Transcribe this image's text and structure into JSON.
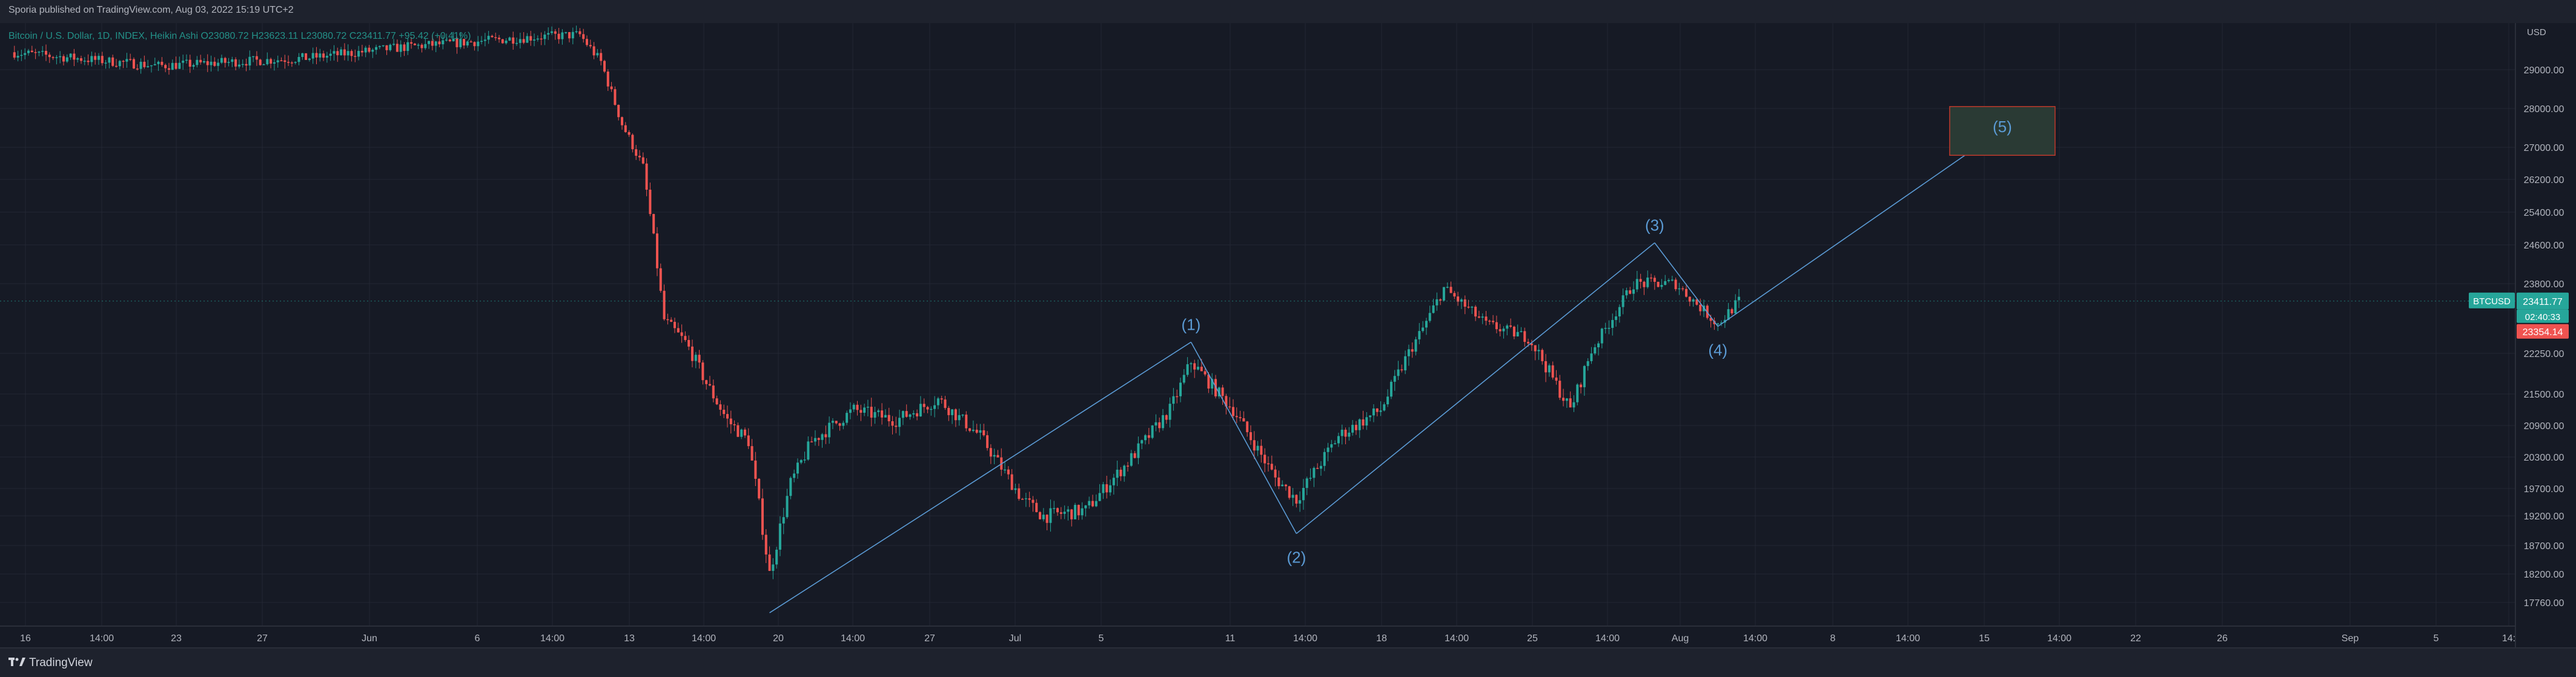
{
  "header": {
    "published_text": "Sporia published on TradingView.com, Aug 03, 2022 15:19 UTC+2"
  },
  "footer": {
    "brand_name": "TradingView",
    "logo_icon": "tradingview-logo-icon"
  },
  "chart_data": {
    "type": "candlestick",
    "symbol_label": "BTCUSD",
    "legend_text": "Bitcoin / U.S. Dollar, 1D, INDEX, Heikin Ashi  O23080.72  H23623.11  L23080.72  C23411.77  +95.42 (+0.41%)",
    "axis_currency": "USD",
    "y_axis": {
      "ticks": [
        29000,
        28000,
        27000,
        26200,
        25400,
        24600,
        23800,
        22250,
        21500,
        20900,
        20300,
        19700,
        19200,
        18700,
        18200,
        17760
      ],
      "tick_labels": [
        "29000.00",
        "28000.00",
        "27000.00",
        "26200.00",
        "25400.00",
        "24600.00",
        "23800.00",
        "22250.00",
        "21500.00",
        "20900.00",
        "20300.00",
        "19700.00",
        "19200.00",
        "18700.00",
        "18200.00",
        "17760.00"
      ]
    },
    "x_axis": {
      "tick_labels": [
        "16",
        "14:00",
        "23",
        "27",
        "Jun",
        "6",
        "14:00",
        "13",
        "14:00",
        "20",
        "14:00",
        "27",
        "Jul",
        "5",
        "11",
        "14:00",
        "18",
        "14:00",
        "25",
        "14:00",
        "Aug",
        "14:00",
        "8",
        "14:00",
        "15",
        "14:00",
        "22",
        "26",
        "Sep",
        "5",
        "14:"
      ]
    },
    "price_labels": {
      "last_price": "23411.77",
      "countdown": "02:40:33",
      "close_price": "23354.14"
    },
    "colors": {
      "up": "#26a69a",
      "down": "#ef5350",
      "wave_line": "#5b9bd5",
      "wave_label": "#5b9bd5",
      "target_box_fill": "#2a3a34",
      "target_box_border": "#c0392b",
      "background": "#161a25",
      "grid": "#232733"
    },
    "wave_points": [
      {
        "label": "",
        "date": "2022-06-18",
        "price": 17600
      },
      {
        "label": "(1)",
        "date": "2022-07-08",
        "price": 22500
      },
      {
        "label": "(2)",
        "date": "2022-07-13",
        "price": 18900
      },
      {
        "label": "(3)",
        "date": "2022-07-30",
        "price": 24650
      },
      {
        "label": "(4)",
        "date": "2022-08-02",
        "price": 22850
      },
      {
        "label": "(5)",
        "date": "2022-08-16",
        "price": 27650
      }
    ],
    "target_box": {
      "label": "(5)",
      "date_from": "2022-08-13",
      "date_to": "2022-08-18",
      "price_top": 28050,
      "price_bottom": 26800
    },
    "anchors": [
      {
        "date": "2022-05-13",
        "price": 29450
      },
      {
        "date": "2022-05-20",
        "price": 29100
      },
      {
        "date": "2022-05-27",
        "price": 29300
      },
      {
        "date": "2022-06-01",
        "price": 29600
      },
      {
        "date": "2022-06-07",
        "price": 29850
      },
      {
        "date": "2022-06-09",
        "price": 29900
      },
      {
        "date": "2022-06-10",
        "price": 29200
      },
      {
        "date": "2022-06-11",
        "price": 27600
      },
      {
        "date": "2022-06-12",
        "price": 26500
      },
      {
        "date": "2022-06-13",
        "price": 23000
      },
      {
        "date": "2022-06-14",
        "price": 22500
      },
      {
        "date": "2022-06-15",
        "price": 21700
      },
      {
        "date": "2022-06-16",
        "price": 21000
      },
      {
        "date": "2022-06-17",
        "price": 20600
      },
      {
        "date": "2022-06-18",
        "price": 18200
      },
      {
        "date": "2022-06-19",
        "price": 19800
      },
      {
        "date": "2022-06-20",
        "price": 20600
      },
      {
        "date": "2022-06-22",
        "price": 21200
      },
      {
        "date": "2022-06-24",
        "price": 21000
      },
      {
        "date": "2022-06-26",
        "price": 21400
      },
      {
        "date": "2022-06-28",
        "price": 20700
      },
      {
        "date": "2022-06-30",
        "price": 19500
      },
      {
        "date": "2022-07-01",
        "price": 19200
      },
      {
        "date": "2022-07-03",
        "price": 19300
      },
      {
        "date": "2022-07-05",
        "price": 20200
      },
      {
        "date": "2022-07-07",
        "price": 21200
      },
      {
        "date": "2022-07-08",
        "price": 22100
      },
      {
        "date": "2022-07-10",
        "price": 21200
      },
      {
        "date": "2022-07-12",
        "price": 19900
      },
      {
        "date": "2022-07-13",
        "price": 19500
      },
      {
        "date": "2022-07-15",
        "price": 20700
      },
      {
        "date": "2022-07-17",
        "price": 21200
      },
      {
        "date": "2022-07-19",
        "price": 22800
      },
      {
        "date": "2022-07-20",
        "price": 23700
      },
      {
        "date": "2022-07-22",
        "price": 22900
      },
      {
        "date": "2022-07-24",
        "price": 22600
      },
      {
        "date": "2022-07-26",
        "price": 21200
      },
      {
        "date": "2022-07-27",
        "price": 22300
      },
      {
        "date": "2022-07-29",
        "price": 23800
      },
      {
        "date": "2022-07-31",
        "price": 23800
      },
      {
        "date": "2022-08-02",
        "price": 22900
      },
      {
        "date": "2022-08-03",
        "price": 23410
      }
    ]
  }
}
